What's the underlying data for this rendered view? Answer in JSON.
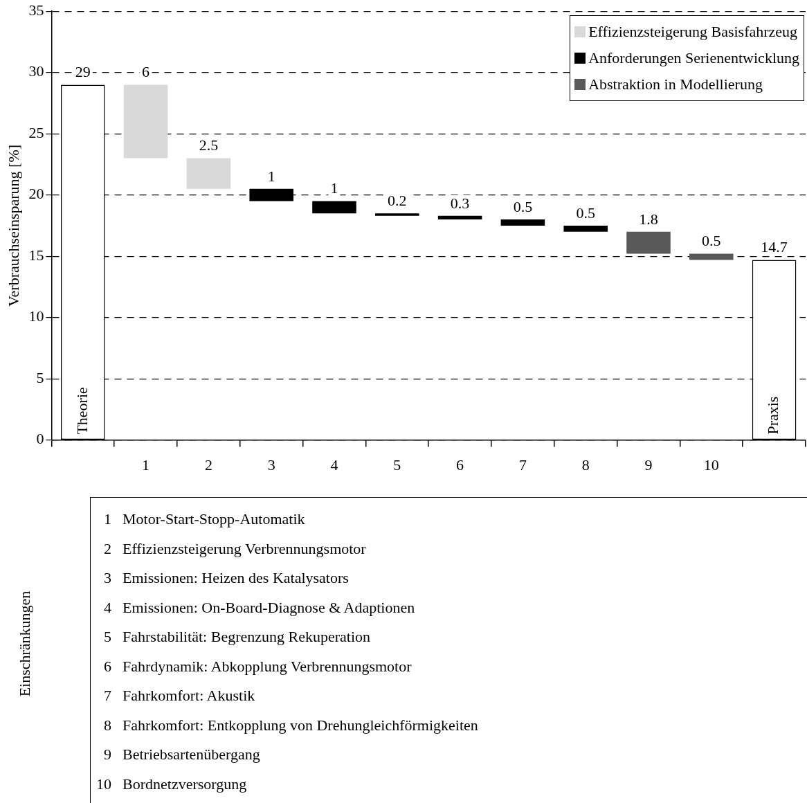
{
  "chart_data": {
    "type": "bar",
    "ylabel": "Verbrauchseinsparung [%]",
    "categories": [
      null,
      "1",
      "2",
      "3",
      "4",
      "5",
      "6",
      "7",
      "8",
      "9",
      "10",
      null
    ],
    "series": [
      {
        "color": "#ffffff",
        "values": [
          29,
          null,
          null,
          null,
          null,
          null,
          null,
          null,
          null,
          null,
          null,
          14.7
        ],
        "base": [
          0,
          null,
          null,
          null,
          null,
          null,
          null,
          null,
          null,
          null,
          null,
          0
        ]
      },
      {
        "name": "Effizienzsteigerung Basisfahrzeug",
        "color": "#d9d9d9",
        "values": [
          null,
          6,
          2.5,
          null,
          null,
          null,
          null,
          null,
          null,
          null,
          null,
          null
        ],
        "base": [
          null,
          23,
          20.5,
          null,
          null,
          null,
          null,
          null,
          null,
          null,
          null,
          null
        ]
      },
      {
        "name": "Anforderungen Serienentwicklung",
        "color": "#000000",
        "values": [
          null,
          null,
          null,
          1,
          1,
          0.2,
          0.3,
          0.5,
          0.5,
          null,
          null,
          null
        ],
        "base": [
          null,
          null,
          null,
          19.5,
          18.5,
          18.3,
          18.0,
          17.5,
          17.0,
          null,
          null,
          null
        ]
      },
      {
        "name": "Abstraktion in Modellierung",
        "color": "#595959",
        "values": [
          null,
          null,
          null,
          null,
          null,
          null,
          null,
          null,
          null,
          1.8,
          0.5,
          null
        ],
        "base": [
          null,
          null,
          null,
          null,
          null,
          null,
          null,
          null,
          null,
          15.2,
          14.7,
          null
        ]
      }
    ],
    "ylim": [
      0,
      35
    ],
    "yticks": [
      0,
      5,
      10,
      15,
      20,
      25,
      30,
      35
    ],
    "grid": "y",
    "legend": "top right",
    "data_labels": true,
    "annotations": [
      "Theorie",
      "Praxis",
      "Einschränkungen",
      "Motor-Start-Stopp-Automatik",
      "Effizienzsteigerung Verbrennungsmotor",
      "Emissionen: Heizen des Katalysators",
      "Emissionen: On-Board-Diagnose & Adaptionen",
      "Fahrstabilität: Begrenzung Rekuperation",
      "Fahrdynamik: Abkopplung Verbrennungsmotor",
      "Fahrkomfort: Akustik",
      "Fahrkomfort: Entkopplung von Drehungleichförmigkeiten",
      "Betriebsartenübergang",
      "Bordnetzversorgung"
    ]
  }
}
